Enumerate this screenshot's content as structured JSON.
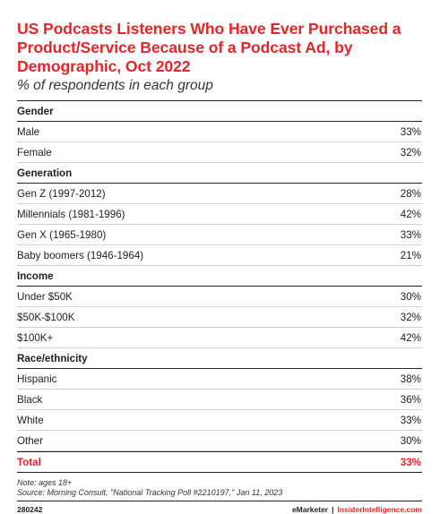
{
  "header": {
    "title": "US Podcasts Listeners Who Have Ever Purchased a Product/Service Because of a Podcast Ad, by Demographic, Oct 2022",
    "subtitle": "% of respondents in each group"
  },
  "chart_data": {
    "type": "table",
    "title": "US Podcasts Listeners Who Have Ever Purchased a Product/Service Because of a Podcast Ad, by Demographic, Oct 2022",
    "subtitle": "% of respondents in each group",
    "sections": [
      {
        "name": "Gender",
        "rows": [
          {
            "label": "Male",
            "value": "33%"
          },
          {
            "label": "Female",
            "value": "32%"
          }
        ]
      },
      {
        "name": "Generation",
        "rows": [
          {
            "label": "Gen Z (1997-2012)",
            "value": "28%"
          },
          {
            "label": "Millennials (1981-1996)",
            "value": "42%"
          },
          {
            "label": "Gen X (1965-1980)",
            "value": "33%"
          },
          {
            "label": "Baby boomers (1946-1964)",
            "value": "21%"
          }
        ]
      },
      {
        "name": "Income",
        "rows": [
          {
            "label": "Under $50K",
            "value": "30%"
          },
          {
            "label": "$50K-$100K",
            "value": "32%"
          },
          {
            "label": "$100K+",
            "value": "42%"
          }
        ]
      },
      {
        "name": "Race/ethnicity",
        "rows": [
          {
            "label": "Hispanic",
            "value": "38%"
          },
          {
            "label": "Black",
            "value": "36%"
          },
          {
            "label": "White",
            "value": "33%"
          },
          {
            "label": "Other",
            "value": "30%"
          }
        ]
      }
    ],
    "total": {
      "label": "Total",
      "value": "33%"
    }
  },
  "notes": {
    "note": "Note: ages 18+",
    "source": "Source: Morning Consult, \"National Tracking Poll #2210197,\" Jan 11, 2023"
  },
  "footer": {
    "chart_id": "280242",
    "brand_left": "eMarketer",
    "separator": "|",
    "brand_right": "InsiderIntelligence.com"
  },
  "colors": {
    "accent": "#e4262b",
    "text": "#222222",
    "divider": "#cfcfcf"
  }
}
